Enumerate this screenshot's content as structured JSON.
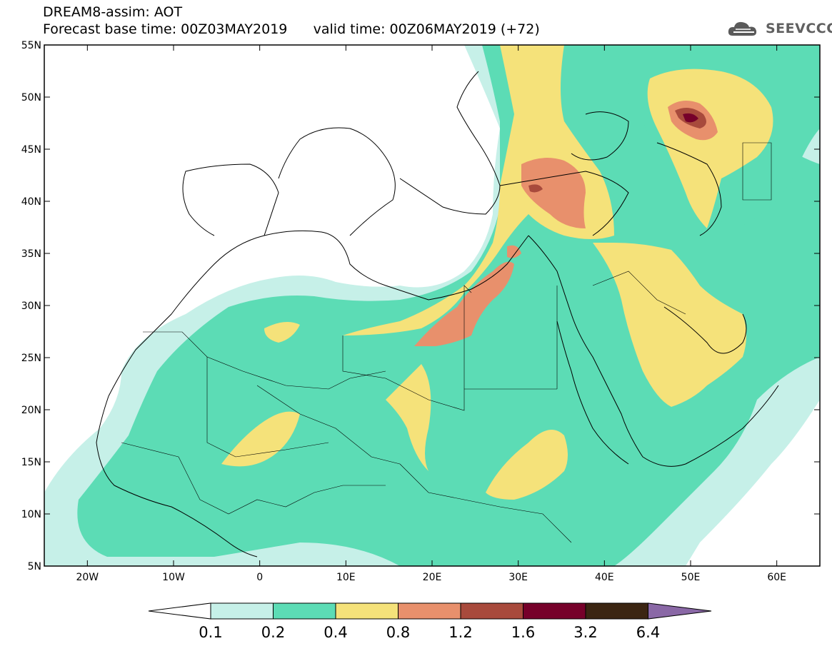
{
  "header": {
    "line1": "DREAM8-assim: AOT",
    "line2_base": "Forecast base time: 00Z03MAY2019",
    "line2_valid": "valid time: 00Z06MAY2019 (+72)"
  },
  "logo": {
    "text": "SEEVCCC",
    "icon": "cloud-logo-icon"
  },
  "map": {
    "lon_range": [
      -25,
      65
    ],
    "lat_range": [
      5,
      55
    ],
    "lat_ticks": [
      "5N",
      "10N",
      "15N",
      "20N",
      "25N",
      "30N",
      "35N",
      "40N",
      "45N",
      "50N",
      "55N"
    ],
    "lon_ticks": [
      "20W",
      "10W",
      "0",
      "10E",
      "20E",
      "30E",
      "40E",
      "50E",
      "60E"
    ]
  },
  "colorbar": {
    "labels": [
      "0.1",
      "0.2",
      "0.4",
      "0.8",
      "1.2",
      "1.6",
      "3.2",
      "6.4"
    ],
    "colors": [
      "#c6f0e8",
      "#5cdcb5",
      "#f5e27a",
      "#e8906c",
      "#a84a3c",
      "#76002a",
      "#3b2512",
      "#8a68a6"
    ],
    "under_color": "#ffffff"
  }
}
